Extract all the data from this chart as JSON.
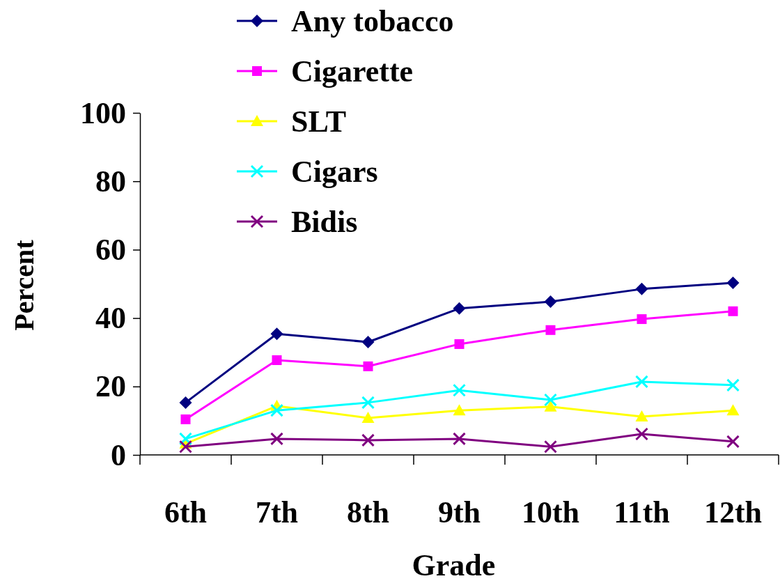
{
  "chart_data": {
    "type": "line",
    "xlabel": "Grade",
    "ylabel": "Percent",
    "categories": [
      "6th",
      "7th",
      "8th",
      "9th",
      "10th",
      "11th",
      "12th"
    ],
    "series": [
      {
        "name": "Any tobacco",
        "color": "#000080",
        "marker": "diamond",
        "values": [
          15.3,
          35.4,
          33.0,
          42.8,
          44.8,
          48.5,
          50.3
        ]
      },
      {
        "name": "Cigarette",
        "color": "#ff00ff",
        "marker": "square",
        "values": [
          10.4,
          27.7,
          25.9,
          32.4,
          36.5,
          39.7,
          42.0
        ]
      },
      {
        "name": "SLT",
        "color": "#ffff00",
        "marker": "triangle",
        "values": [
          3.3,
          14.3,
          10.8,
          13.0,
          14.1,
          11.2,
          13.0
        ]
      },
      {
        "name": "Cigars",
        "color": "#00ffff",
        "marker": "cross",
        "values": [
          4.7,
          13.0,
          15.3,
          18.9,
          16.1,
          21.4,
          20.4
        ]
      },
      {
        "name": "Bidis",
        "color": "#800080",
        "marker": "cross",
        "values": [
          2.4,
          4.7,
          4.3,
          4.7,
          2.4,
          6.1,
          3.9
        ]
      }
    ],
    "ylim": [
      0,
      100
    ],
    "yticks": [
      0,
      20,
      40,
      60,
      80,
      100
    ],
    "grid": false,
    "legend": "top",
    "line_style": "solid"
  }
}
